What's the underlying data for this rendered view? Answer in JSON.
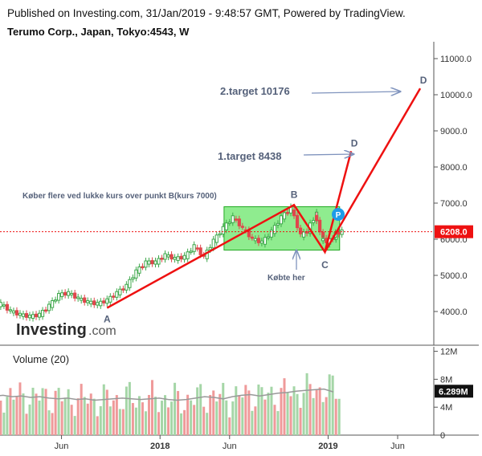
{
  "header": {
    "published": "Published on Investing.com, 31/Jan/2019 - 9:48:57 GMT, Powered by TradingView.",
    "symbol": "Terumo Corp., Japan, Tokyo:4543, W"
  },
  "logo": {
    "main": "Investing",
    "suffix": ".com"
  },
  "colors": {
    "up": "#3fa84c",
    "down": "#e0464c",
    "pattern": "#ee1111",
    "zone": "#33dd33",
    "arrow": "#7f93bd",
    "price": "#ee1111",
    "vol_up": "#a5d6a7",
    "vol_down": "#ef9a9a",
    "vol_ma": "#999999"
  },
  "annotations": {
    "A": "A",
    "B": "B",
    "C": "C",
    "D1": "D",
    "D2": "D",
    "target2": "2.target 10176",
    "target1": "1.target 8438",
    "note": "Køber flere ved lukke kurs over punkt B(kurs 7000)",
    "bought": "Købte her",
    "p_badge": "P"
  },
  "chart_data": [
    {
      "type": "candlestick",
      "title": "Terumo Corp., Japan, Tokyo:4543, W",
      "y_ticks": [
        "11000.0",
        "10000.0",
        "9000.0",
        "8000.0",
        "7000.0",
        "6000.0",
        "5000.0",
        "4000.0"
      ],
      "y_tick_values": [
        11000,
        10000,
        9000,
        8000,
        7000,
        6000,
        5000,
        4000
      ],
      "x_ticks": [
        "Jun",
        "2018",
        "Jun",
        "2019",
        "Jun"
      ],
      "x_tick_dates": [
        "2017-06-01",
        "2018-01-01",
        "2018-06-01",
        "2019-01-01",
        "2019-06-01"
      ],
      "ylim": [
        3200,
        11300
      ],
      "last_price": "6208.0",
      "last_price_value": 6208,
      "series": [
        {
          "name": "price",
          "points": [
            {
              "date": "2017-01-20",
              "close": 4200
            },
            {
              "date": "2017-02-10",
              "close": 4000
            },
            {
              "date": "2017-03-03",
              "close": 3900
            },
            {
              "date": "2017-03-24",
              "close": 3850
            },
            {
              "date": "2017-04-14",
              "close": 3900
            },
            {
              "date": "2017-05-05",
              "close": 4150
            },
            {
              "date": "2017-05-26",
              "close": 4450
            },
            {
              "date": "2017-06-16",
              "close": 4500
            },
            {
              "date": "2017-07-07",
              "close": 4350
            },
            {
              "date": "2017-07-28",
              "close": 4250
            },
            {
              "date": "2017-08-18",
              "close": 4200
            },
            {
              "date": "2017-09-08",
              "close": 4300
            },
            {
              "date": "2017-09-29",
              "close": 4500
            },
            {
              "date": "2017-10-20",
              "close": 4700
            },
            {
              "date": "2017-11-10",
              "close": 5100
            },
            {
              "date": "2017-12-01",
              "close": 5350
            },
            {
              "date": "2017-12-22",
              "close": 5350
            },
            {
              "date": "2018-01-12",
              "close": 5550
            },
            {
              "date": "2018-02-02",
              "close": 5450
            },
            {
              "date": "2018-02-23",
              "close": 5500
            },
            {
              "date": "2018-03-16",
              "close": 5800
            },
            {
              "date": "2018-04-06",
              "close": 5500
            },
            {
              "date": "2018-04-27",
              "close": 5950
            },
            {
              "date": "2018-05-18",
              "close": 6300
            },
            {
              "date": "2018-06-08",
              "close": 6600
            },
            {
              "date": "2018-06-29",
              "close": 6300
            },
            {
              "date": "2018-07-20",
              "close": 6000
            },
            {
              "date": "2018-08-10",
              "close": 5900
            },
            {
              "date": "2018-08-31",
              "close": 6200
            },
            {
              "date": "2018-09-21",
              "close": 6600
            },
            {
              "date": "2018-10-12",
              "close": 6850
            },
            {
              "date": "2018-11-02",
              "close": 6100
            },
            {
              "date": "2018-11-23",
              "close": 6250
            },
            {
              "date": "2018-12-07",
              "close": 6700
            },
            {
              "date": "2018-12-21",
              "close": 6000
            },
            {
              "date": "2019-01-04",
              "close": 5900
            },
            {
              "date": "2019-01-18",
              "close": 6100
            },
            {
              "date": "2019-01-31",
              "close": 6208
            }
          ]
        }
      ],
      "pattern_points": [
        {
          "label": "A",
          "date": "2017-09-08",
          "value": 4100
        },
        {
          "label": "B",
          "date": "2018-10-19",
          "value": 6950
        },
        {
          "label": "C",
          "date": "2018-12-25",
          "value": 5650
        },
        {
          "label": "D",
          "date": "2019-02-20",
          "value": 8438
        },
        {
          "label": "D",
          "date": "2019-07-20",
          "value": 10176
        }
      ],
      "zone": {
        "date_from": "2018-05-20",
        "date_to": "2019-01-26",
        "low": 5700,
        "high": 6900
      }
    },
    {
      "type": "bar",
      "title": "Volume (20)",
      "y_ticks": [
        "12M",
        "8M",
        "4M",
        "0"
      ],
      "y_tick_values": [
        12,
        8,
        4,
        0
      ],
      "ylim": [
        0,
        12.5
      ],
      "last_value_label": "6.289M",
      "last_value": 6.289,
      "volume_ma": [
        5.6,
        5.7,
        5.5,
        5.6,
        5.4,
        5.5,
        5.3,
        5.2,
        5.3,
        5.1,
        5.2,
        5.0,
        5.1,
        5.2,
        5.3,
        5.2,
        5.1,
        5.2,
        5.3,
        5.1,
        5.0,
        5.1,
        5.3,
        5.5,
        5.4,
        5.2,
        5.5,
        5.7,
        5.8,
        5.6,
        5.8,
        6.0,
        6.1,
        6.3,
        6.4,
        6.5,
        6.6,
        6.2
      ]
    }
  ]
}
